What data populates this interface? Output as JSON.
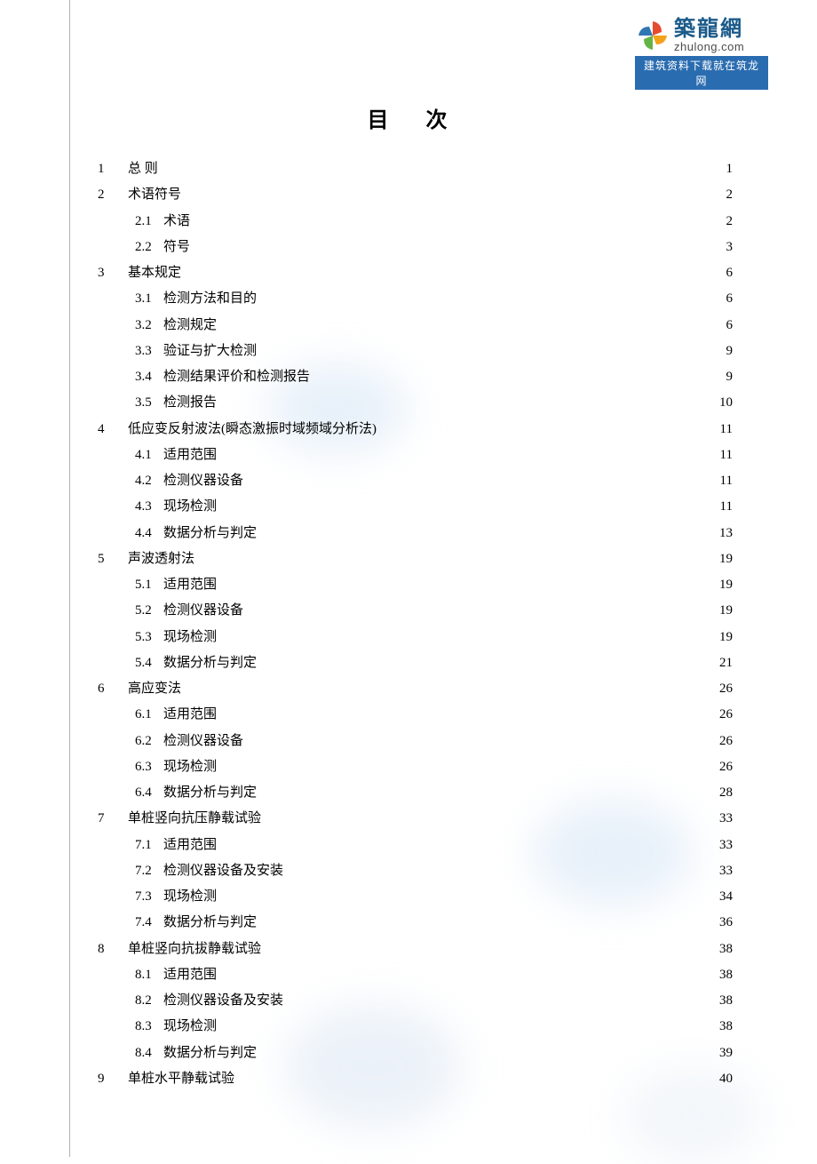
{
  "watermark": {
    "brand_cn": "築龍網",
    "brand_en": "zhulong.com",
    "banner": "建筑资料下载就在筑龙网",
    "pinwheel_colors": [
      "#e64b2f",
      "#f5a21b",
      "#64b445",
      "#2f77b3"
    ]
  },
  "title": "目 次",
  "title_fontsize": 24,
  "body_fontsize": 15,
  "line_height": 1.95,
  "text_color": "#000000",
  "background_color": "#ffffff",
  "margin_line_color": "#b0b0b0",
  "toc": [
    {
      "type": "chapter",
      "num": "1",
      "label": "总    则",
      "page": "1"
    },
    {
      "type": "chapter",
      "num": "2",
      "label": "术语符号",
      "page": "2"
    },
    {
      "type": "section",
      "num": "2.1",
      "label": "术语",
      "page": "2"
    },
    {
      "type": "section",
      "num": "2.2",
      "label": "符号",
      "page": "3"
    },
    {
      "type": "chapter",
      "num": "3",
      "label": "基本规定",
      "page": "6"
    },
    {
      "type": "section",
      "num": "3.1",
      "label": "检测方法和目的",
      "page": "6"
    },
    {
      "type": "section",
      "num": "3.2",
      "label": "检测规定",
      "page": "6"
    },
    {
      "type": "section",
      "num": "3.3",
      "label": "验证与扩大检测",
      "page": "9"
    },
    {
      "type": "section",
      "num": "3.4",
      "label": "检测结果评价和检测报告",
      "page": "9"
    },
    {
      "type": "section",
      "num": "3.5",
      "label": "检测报告",
      "page": "10"
    },
    {
      "type": "chapter",
      "num": "4",
      "label": "低应变反射波法(瞬态激振时域频域分析法)",
      "page": "11"
    },
    {
      "type": "section",
      "num": "4.1",
      "label": "适用范围",
      "page": "11"
    },
    {
      "type": "section",
      "num": "4.2",
      "label": "检测仪器设备",
      "page": "11"
    },
    {
      "type": "section",
      "num": "4.3",
      "label": "现场检测",
      "page": "11"
    },
    {
      "type": "section",
      "num": "4.4",
      "label": "数据分析与判定",
      "page": "13"
    },
    {
      "type": "chapter",
      "num": "5",
      "label": "声波透射法",
      "page": "19"
    },
    {
      "type": "section",
      "num": "5.1",
      "label": "适用范围",
      "page": "19"
    },
    {
      "type": "section",
      "num": "5.2",
      "label": "检测仪器设备",
      "page": "19"
    },
    {
      "type": "section",
      "num": "5.3",
      "label": "现场检测",
      "page": "19"
    },
    {
      "type": "section",
      "num": "5.4",
      "label": "数据分析与判定",
      "page": "21"
    },
    {
      "type": "chapter",
      "num": "6",
      "label": "高应变法",
      "page": "26"
    },
    {
      "type": "section",
      "num": "6.1",
      "label": "适用范围",
      "page": "26"
    },
    {
      "type": "section",
      "num": "6.2",
      "label": "检测仪器设备",
      "page": "26"
    },
    {
      "type": "section",
      "num": "6.3",
      "label": "现场检测",
      "page": "26"
    },
    {
      "type": "section",
      "num": "6.4",
      "label": "数据分析与判定",
      "page": "28"
    },
    {
      "type": "chapter",
      "num": "7",
      "label": "单桩竖向抗压静载试验",
      "page": "33"
    },
    {
      "type": "section",
      "num": "7.1",
      "label": "适用范围",
      "page": "33"
    },
    {
      "type": "section",
      "num": "7.2",
      "label": "检测仪器设备及安装",
      "page": "33"
    },
    {
      "type": "section",
      "num": "7.3",
      "label": "现场检测",
      "page": "34"
    },
    {
      "type": "section",
      "num": "7.4",
      "label": "数据分析与判定",
      "page": "36"
    },
    {
      "type": "chapter",
      "num": "8",
      "label": "单桩竖向抗拔静载试验",
      "page": "38"
    },
    {
      "type": "section",
      "num": "8.1",
      "label": "适用范围",
      "page": "38"
    },
    {
      "type": "section",
      "num": "8.2",
      "label": "检测仪器设备及安装",
      "page": "38"
    },
    {
      "type": "section",
      "num": "8.3",
      "label": "现场检测",
      "page": "38"
    },
    {
      "type": "section",
      "num": "8.4",
      "label": "数据分析与判定",
      "page": "39"
    },
    {
      "type": "chapter",
      "num": "9",
      "label": "单桩水平静载试验",
      "page": "40"
    }
  ]
}
